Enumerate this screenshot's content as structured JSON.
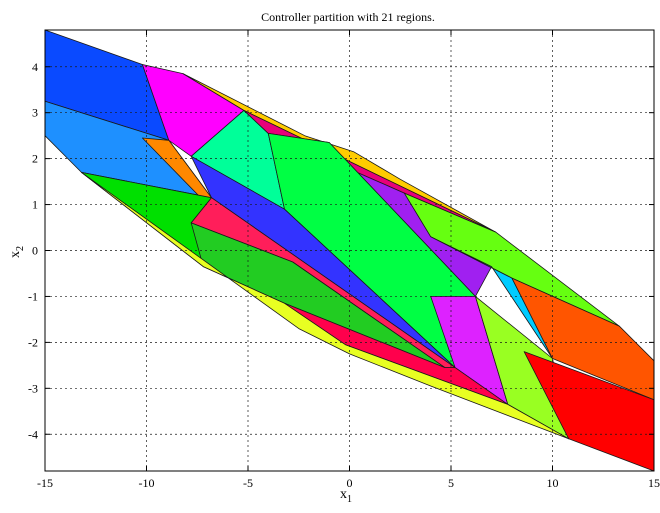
{
  "chart_data": {
    "type": "area",
    "title": "Controller partition with 21 regions.",
    "xlabel": "x",
    "xlabel_sub": "1",
    "ylabel": "x",
    "ylabel_sub": "2",
    "xlim": [
      -15,
      15
    ],
    "ylim": [
      -4.8,
      4.8
    ],
    "xticks": [
      -15,
      -10,
      -5,
      0,
      5,
      10,
      15
    ],
    "yticks": [
      -4,
      -3,
      -2,
      -1,
      0,
      1,
      2,
      3,
      4
    ],
    "grid": true,
    "regions": [
      {
        "color": "#0a4aff",
        "points": [
          [
            -15,
            4.8
          ],
          [
            -10.2,
            4.05
          ],
          [
            -8.9,
            2.4
          ],
          [
            -15,
            3.25
          ]
        ]
      },
      {
        "color": "#1e90ff",
        "points": [
          [
            -15,
            3.25
          ],
          [
            -8.9,
            2.4
          ],
          [
            -6.8,
            1.15
          ],
          [
            -13.2,
            1.7
          ],
          [
            -15,
            2.5
          ]
        ]
      },
      {
        "color": "#ff00ff",
        "points": [
          [
            -10.2,
            4.05
          ],
          [
            -8.2,
            3.85
          ],
          [
            -5.2,
            3.05
          ],
          [
            -7.8,
            2.05
          ],
          [
            -8.9,
            2.4
          ]
        ]
      },
      {
        "color": "#ffcc00",
        "points": [
          [
            -8.2,
            3.85
          ],
          [
            -2.2,
            2.5
          ],
          [
            0.2,
            2.15
          ],
          [
            2.5,
            1.55
          ],
          [
            7.2,
            0.4
          ],
          [
            -5.2,
            3.05
          ]
        ]
      },
      {
        "color": "#00ff99",
        "points": [
          [
            -7.8,
            2.05
          ],
          [
            -5.2,
            3.05
          ],
          [
            -4.0,
            2.55
          ],
          [
            -3.2,
            0.9
          ]
        ]
      },
      {
        "color": "#e8007a",
        "points": [
          [
            -4.0,
            2.55
          ],
          [
            -5.2,
            3.05
          ],
          [
            7.2,
            0.4
          ],
          [
            2.7,
            1.25
          ]
        ]
      },
      {
        "color": "#a020f0",
        "points": [
          [
            -4.0,
            2.55
          ],
          [
            2.7,
            1.25
          ],
          [
            4.0,
            0.3
          ],
          [
            7.0,
            -0.35
          ],
          [
            6.2,
            -1.0
          ],
          [
            -1.0,
            2.35
          ]
        ]
      },
      {
        "color": "#00ff44",
        "points": [
          [
            -4.0,
            2.55
          ],
          [
            -1.0,
            2.35
          ],
          [
            6.2,
            -1.0
          ],
          [
            5.2,
            -2.55
          ],
          [
            -3.2,
            0.9
          ]
        ]
      },
      {
        "color": "#66ff11",
        "points": [
          [
            2.7,
            1.25
          ],
          [
            7.2,
            0.4
          ],
          [
            13.3,
            -1.65
          ],
          [
            8.0,
            -0.6
          ],
          [
            4.0,
            0.3
          ]
        ]
      },
      {
        "color": "#00ccff",
        "points": [
          [
            4.0,
            0.3
          ],
          [
            8.0,
            -0.6
          ],
          [
            10.0,
            -2.35
          ],
          [
            7.0,
            -0.35
          ]
        ]
      },
      {
        "color": "#ff5500",
        "points": [
          [
            8.0,
            -0.6
          ],
          [
            13.3,
            -1.65
          ],
          [
            15,
            -2.4
          ],
          [
            15,
            -3.25
          ],
          [
            10.0,
            -2.35
          ]
        ]
      },
      {
        "color": "#ff8800",
        "points": [
          [
            -10.2,
            2.45
          ],
          [
            -8.9,
            2.4
          ],
          [
            -6.8,
            1.15
          ],
          [
            -5.5,
            -0.05
          ],
          [
            -3.8,
            -0.45
          ]
        ]
      },
      {
        "color": "#3333ff",
        "points": [
          [
            -7.8,
            2.05
          ],
          [
            -3.2,
            0.9
          ],
          [
            5.2,
            -2.55
          ],
          [
            -6.8,
            1.15
          ]
        ]
      },
      {
        "color": "#00e000",
        "points": [
          [
            -13.2,
            1.7
          ],
          [
            -6.8,
            1.15
          ],
          [
            -7.8,
            0.6
          ],
          [
            -5.5,
            -0.05
          ],
          [
            -7.2,
            -0.35
          ]
        ]
      },
      {
        "color": "#ff1e5a",
        "points": [
          [
            -6.8,
            1.15
          ],
          [
            5.2,
            -2.55
          ],
          [
            4.7,
            -2.55
          ],
          [
            -2.8,
            -0.25
          ],
          [
            -7.8,
            0.6
          ]
        ]
      },
      {
        "color": "#22cc22",
        "points": [
          [
            -7.8,
            0.6
          ],
          [
            -2.8,
            -0.25
          ],
          [
            4.7,
            -2.55
          ],
          [
            -3.2,
            -1.15
          ],
          [
            -7.2,
            -0.35
          ]
        ]
      },
      {
        "color": "#dd22ff",
        "points": [
          [
            4.0,
            -1.0
          ],
          [
            6.2,
            -1.0
          ],
          [
            7.8,
            -3.35
          ],
          [
            5.2,
            -2.55
          ]
        ]
      },
      {
        "color": "#99ff22",
        "points": [
          [
            6.2,
            -1.0
          ],
          [
            10.0,
            -2.35
          ],
          [
            10.8,
            -4.1
          ],
          [
            7.8,
            -3.35
          ]
        ]
      },
      {
        "color": "#ff0000",
        "points": [
          [
            8.6,
            -2.2
          ],
          [
            15,
            -3.25
          ],
          [
            15,
            -4.8
          ],
          [
            10.8,
            -4.1
          ]
        ]
      },
      {
        "color": "#ff004c",
        "points": [
          [
            -3.2,
            -1.15
          ],
          [
            4.7,
            -2.55
          ],
          [
            5.2,
            -2.55
          ],
          [
            7.8,
            -3.35
          ],
          [
            -0.2,
            -2.05
          ]
        ]
      },
      {
        "color": "#e8ff22",
        "points": [
          [
            -13.2,
            1.7
          ],
          [
            -7.2,
            -0.35
          ],
          [
            -3.2,
            -1.15
          ],
          [
            -0.2,
            -2.05
          ],
          [
            7.8,
            -3.35
          ],
          [
            10.8,
            -4.1
          ],
          [
            4.0,
            -2.95
          ],
          [
            0.0,
            -2.25
          ],
          [
            -2.5,
            -1.7
          ]
        ]
      }
    ]
  }
}
